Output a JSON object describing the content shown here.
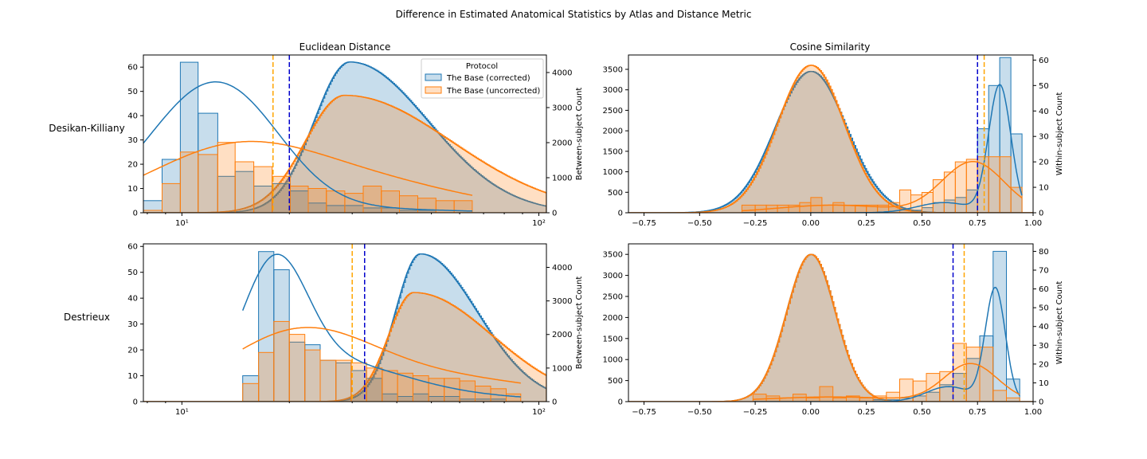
{
  "figure": {
    "title": "Difference in Estimated Anatomical Statistics by Atlas and Distance Metric",
    "column_titles": [
      "Euclidean Distance",
      "Cosine Similarity"
    ],
    "row_labels": [
      "Desikan-Killiany",
      "Destrieux"
    ],
    "colors": {
      "corrected": "#1f77b4",
      "uncorrected": "#ff7f0e",
      "blue_line": "#0000cc",
      "orange_line": "#ffa500"
    }
  },
  "legend": {
    "title": "Protocol",
    "entries": [
      "The Base (corrected)",
      "The Base (uncorrected)"
    ]
  },
  "chart_data": [
    {
      "type": "histogram",
      "panel": "Desikan-Killiany / Euclidean Distance",
      "xscale": "log",
      "xlim": [
        7.8,
        105
      ],
      "xticks": [
        10,
        100
      ],
      "xtick_labels": [
        "10¹",
        "10²"
      ],
      "within": {
        "ylim": [
          0,
          65
        ],
        "ticks": [
          0,
          10,
          20,
          30,
          40,
          50,
          60
        ],
        "ylabel": ""
      },
      "between": {
        "ylim": [
          0,
          4500
        ],
        "ticks": [
          0,
          1000,
          2000,
          3000,
          4000
        ],
        "ylabel": "Between-subject Count"
      },
      "within_hist": {
        "edges": [
          7.8,
          8.8,
          9.9,
          11.1,
          12.6,
          14.1,
          15.9,
          17.9,
          20.1,
          22.6,
          25.4,
          28.6,
          32.2,
          36.2,
          40.7,
          45.8,
          51.5,
          57.9,
          65.1
        ],
        "corrected": [
          5,
          22,
          62,
          41,
          15,
          17,
          11,
          12,
          9,
          4,
          3,
          3,
          2,
          2,
          1,
          1,
          0,
          0
        ],
        "uncorrected": [
          1,
          12,
          25,
          24,
          29,
          21,
          19,
          15,
          11,
          10,
          9,
          8,
          11,
          9,
          7,
          6,
          5,
          5
        ]
      },
      "within_kde": {
        "corrected": {
          "mix": [
            [
              11.5,
              0.17,
              44
            ],
            [
              15.5,
              0.14,
              12
            ],
            [
              24,
              0.3,
              2
            ]
          ]
        },
        "uncorrected": {
          "mix": [
            [
              13.5,
              0.24,
              22
            ],
            [
              24,
              0.28,
              9
            ],
            [
              45,
              0.25,
              5
            ]
          ]
        }
      },
      "between_dist": {
        "corrected": {
          "mu": 29.5,
          "sigmaL": 0.1,
          "sigmaR": 0.22,
          "peak": 4300
        },
        "uncorrected": {
          "mu": 28.5,
          "sigmaL": 0.11,
          "sigmaR": 0.3,
          "peak": 3350
        }
      },
      "vlines": {
        "uncorrected": 18,
        "corrected": 20
      },
      "within_axis": "left",
      "between_axis": "right"
    },
    {
      "type": "histogram",
      "panel": "Desikan-Killiany / Cosine Similarity",
      "xscale": "linear",
      "xlim": [
        -0.82,
        1.0
      ],
      "xticks": [
        -0.75,
        -0.5,
        -0.25,
        0,
        0.25,
        0.5,
        0.75,
        1.0
      ],
      "xtick_labels": [
        "−0.75",
        "−0.50",
        "−0.25",
        "0.00",
        "0.25",
        "0.50",
        "0.75",
        "1.00"
      ],
      "between": {
        "ylim": [
          0,
          3850
        ],
        "ticks": [
          0,
          500,
          1000,
          1500,
          2000,
          2500,
          3000,
          3500
        ],
        "ylabel": ""
      },
      "within": {
        "ylim": [
          0,
          62
        ],
        "ticks": [
          0,
          10,
          20,
          30,
          40,
          50,
          60
        ],
        "ylabel": "Within-subject Count"
      },
      "within_hist": {
        "edges": [
          -0.31,
          -0.25,
          -0.2,
          -0.15,
          -0.1,
          -0.05,
          0.0,
          0.05,
          0.1,
          0.15,
          0.2,
          0.25,
          0.3,
          0.35,
          0.4,
          0.45,
          0.5,
          0.55,
          0.6,
          0.65,
          0.7,
          0.75,
          0.8,
          0.85,
          0.9,
          0.95
        ],
        "corrected": [
          0,
          0,
          0,
          0,
          0,
          0,
          0,
          0,
          0,
          0,
          0,
          0,
          0,
          0,
          0,
          1,
          2,
          4,
          5,
          6,
          9,
          33,
          50,
          61,
          31
        ],
        "uncorrected": [
          3,
          3,
          3,
          3,
          3,
          4,
          6,
          3,
          4,
          3,
          3,
          3,
          3,
          4,
          9,
          7,
          8,
          13,
          16,
          20,
          21,
          22,
          22,
          22,
          10
        ]
      },
      "within_kde": {
        "corrected": {
          "mix": [
            [
              0.85,
              0.05,
              50
            ],
            [
              0.6,
              0.12,
              4
            ]
          ]
        },
        "uncorrected": {
          "mix": [
            [
              0.73,
              0.14,
              20
            ],
            [
              0.1,
              0.25,
              3
            ]
          ]
        }
      },
      "between_dist": {
        "corrected": {
          "mu": 0.0,
          "sigmaL": 0.16,
          "sigmaR": 0.16,
          "peak": 3450
        },
        "uncorrected": {
          "mu": 0.0,
          "sigmaL": 0.15,
          "sigmaR": 0.15,
          "peak": 3600
        }
      },
      "vlines": {
        "corrected": 0.75,
        "uncorrected": 0.78
      },
      "within_axis": "right",
      "between_axis": "left"
    },
    {
      "type": "histogram",
      "panel": "Destrieux / Euclidean Distance",
      "xscale": "log",
      "xlim": [
        7.8,
        105
      ],
      "xticks": [
        10,
        100
      ],
      "xtick_labels": [
        "10¹",
        "10²"
      ],
      "within": {
        "ylim": [
          0,
          61
        ],
        "ticks": [
          0,
          10,
          20,
          30,
          40,
          50,
          60
        ],
        "ylabel": ""
      },
      "between": {
        "ylim": [
          0,
          4700
        ],
        "ticks": [
          0,
          1000,
          2000,
          3000,
          4000
        ],
        "ylabel": "Between-subject Count"
      },
      "within_hist": {
        "edges": [
          14.8,
          16.4,
          18.1,
          20.0,
          22.1,
          24.4,
          27.0,
          29.8,
          32.9,
          36.4,
          40.2,
          44.4,
          49.1,
          54.3,
          60.0,
          66.3,
          73.3,
          81.0,
          89.0
        ],
        "corrected": [
          10,
          58,
          51,
          23,
          22,
          16,
          15,
          12,
          9,
          3,
          2,
          3,
          2,
          2,
          1,
          1,
          1,
          0
        ],
        "uncorrected": [
          7,
          19,
          31,
          26,
          20,
          16,
          16,
          15,
          13,
          12,
          11,
          10,
          9,
          9,
          8,
          6,
          5,
          3
        ]
      },
      "within_kde": {
        "corrected": {
          "mix": [
            [
              18.2,
              0.09,
              45
            ],
            [
              25,
              0.2,
              13
            ],
            [
              40,
              0.3,
              3
            ]
          ]
        },
        "uncorrected": {
          "mix": [
            [
              21,
              0.2,
              22
            ],
            [
              45,
              0.35,
              10
            ]
          ]
        }
      },
      "between_dist": {
        "corrected": {
          "mu": 46.5,
          "sigmaL": 0.07,
          "sigmaR": 0.16,
          "peak": 4400
        },
        "uncorrected": {
          "mu": 44.5,
          "sigmaL": 0.07,
          "sigmaR": 0.22,
          "peak": 3250
        }
      },
      "vlines": {
        "uncorrected": 30,
        "corrected": 32.5
      },
      "within_axis": "left",
      "between_axis": "right"
    },
    {
      "type": "histogram",
      "panel": "Destrieux / Cosine Similarity",
      "xscale": "linear",
      "xlim": [
        -0.82,
        1.0
      ],
      "xticks": [
        -0.75,
        -0.5,
        -0.25,
        0,
        0.25,
        0.5,
        0.75,
        1.0
      ],
      "xtick_labels": [
        "−0.75",
        "−0.50",
        "−0.25",
        "0.00",
        "0.25",
        "0.50",
        "0.75",
        "1.00"
      ],
      "between": {
        "ylim": [
          0,
          3750
        ],
        "ticks": [
          0,
          500,
          1000,
          1500,
          2000,
          2500,
          3000,
          3500
        ],
        "ylabel": ""
      },
      "within": {
        "ylim": [
          0,
          84
        ],
        "ticks": [
          0,
          10,
          20,
          30,
          40,
          50,
          60,
          70,
          80
        ],
        "ylabel": "Within-subject Count"
      },
      "within_hist": {
        "edges": [
          -0.26,
          -0.2,
          -0.14,
          -0.08,
          -0.02,
          0.04,
          0.1,
          0.16,
          0.22,
          0.28,
          0.34,
          0.4,
          0.46,
          0.52,
          0.58,
          0.64,
          0.7,
          0.76,
          0.82,
          0.88,
          0.94
        ],
        "corrected": [
          0,
          0,
          0,
          0,
          0,
          0,
          0,
          0,
          0,
          1,
          1,
          2,
          3,
          5,
          9,
          15,
          23,
          35,
          80,
          12
        ],
        "uncorrected": [
          4,
          3,
          2,
          4,
          2,
          8,
          2,
          3,
          2,
          3,
          5,
          12,
          11,
          15,
          16,
          31,
          29,
          29,
          6,
          2
        ]
      },
      "within_kde": {
        "corrected": {
          "mix": [
            [
              0.83,
              0.045,
              60
            ],
            [
              0.62,
              0.1,
              8
            ]
          ]
        },
        "uncorrected": {
          "mix": [
            [
              0.72,
              0.12,
              20
            ],
            [
              0.1,
              0.3,
              2.5
            ]
          ]
        }
      },
      "between_dist": {
        "corrected": {
          "mu": 0.0,
          "sigmaL": 0.11,
          "sigmaR": 0.11,
          "peak": 3500
        },
        "uncorrected": {
          "mu": 0.0,
          "sigmaL": 0.11,
          "sigmaR": 0.11,
          "peak": 3500
        }
      },
      "vlines": {
        "corrected": 0.64,
        "uncorrected": 0.69
      },
      "within_axis": "right",
      "between_axis": "left"
    }
  ]
}
